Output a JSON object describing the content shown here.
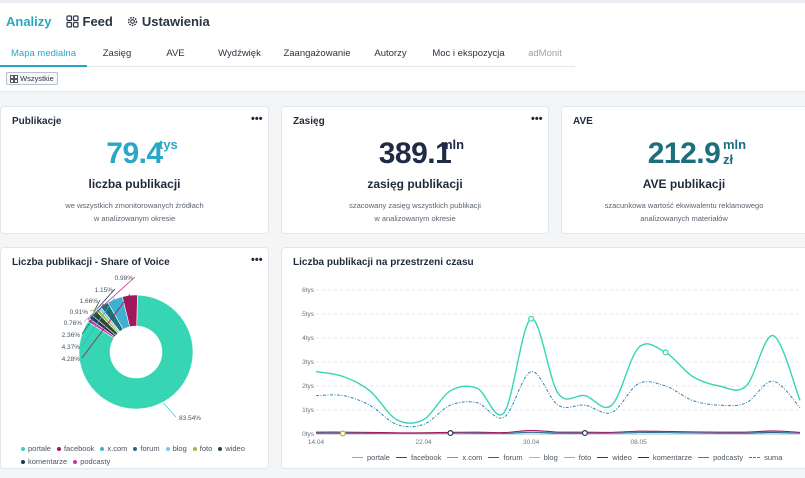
{
  "nav": {
    "items": [
      {
        "label": "Analizy",
        "active": true
      },
      {
        "label": "Feed",
        "icon": "feed-icon"
      },
      {
        "label": "Ustawienia",
        "icon": "gear-icon"
      }
    ]
  },
  "tabs": [
    {
      "label": "Mapa medialna",
      "active": true
    },
    {
      "label": "Zasięg"
    },
    {
      "label": "AVE"
    },
    {
      "label": "Wydźwięk"
    },
    {
      "label": "Zaangażowanie"
    },
    {
      "label": "Autorzy"
    },
    {
      "label": "Moc i ekspozycja"
    },
    {
      "label": "adMonit",
      "disabled": true
    }
  ],
  "filter": {
    "label": "Wszystkie"
  },
  "kpis": [
    {
      "title": "Publikacje",
      "value": "79.4",
      "unit": "tys",
      "label": "liczba publikacji",
      "desc": [
        "we wszystkich zmonitorowanych źródłach",
        "w analizowanym okresie"
      ],
      "color": "#2aa7c6"
    },
    {
      "title": "Zasięg",
      "value": "389.1",
      "unit": "mln",
      "label": "zasięg publikacji",
      "desc": [
        "szacowany zasięg wszystkich publikacji",
        "w analizowanym okresie"
      ],
      "color": "#1f2a44"
    },
    {
      "title": "AVE",
      "value": "212.9",
      "unit": "mln",
      "unit2": "zł",
      "label": "AVE publikacji",
      "desc": [
        "szacunkowa wartość ekwiwalentu reklamowego",
        "analizowanych materiałów"
      ],
      "color": "#1d6f7e"
    }
  ],
  "colors": {
    "portale": "#36d6b4",
    "facebook": "#a0185c",
    "x_com": "#3fb0d0",
    "forum": "#1f6f7a",
    "blog": "#79c8e2",
    "foto": "#a8b83a",
    "wideo": "#244a3a",
    "komentarze": "#233352",
    "podcasty": "#c33aa0",
    "suma": "#2e86b0"
  },
  "sov": {
    "title": "Liczba publikacji - Share of Voice",
    "legend": [
      "portale",
      "facebook",
      "x.com",
      "forum",
      "blog",
      "foto",
      "wideo",
      "komentarze",
      "podcasty"
    ],
    "chart_data": {
      "type": "pie",
      "categories": [
        "portale",
        "facebook",
        "x.com",
        "forum",
        "blog",
        "foto",
        "wideo",
        "komentarze",
        "podcasty"
      ],
      "values": [
        83.54,
        4.28,
        4.37,
        2.36,
        0.76,
        0.91,
        1.66,
        1.15,
        0.98
      ],
      "labels": [
        "83.54%",
        "4.28%",
        "4.37%",
        "2.36%",
        "0.76%",
        "0.91%",
        "1.66%",
        "1.15%",
        "0.98%"
      ]
    }
  },
  "timeline": {
    "title": "Liczba publikacji na przestrzeni czasu",
    "legend": [
      "portale",
      "facebook",
      "x.com",
      "forum",
      "blog",
      "foto",
      "wideo",
      "komentarze",
      "podcasty",
      "suma"
    ],
    "chart_data": {
      "type": "line",
      "x": [
        0,
        2,
        4,
        6,
        8,
        10,
        12,
        14,
        16,
        18,
        20,
        22,
        24,
        26,
        28,
        30,
        32,
        34,
        36
      ],
      "xticks": [
        {
          "x": 0,
          "label": "14.04"
        },
        {
          "x": 8,
          "label": "22.04"
        },
        {
          "x": 16,
          "label": "30.04"
        },
        {
          "x": 24,
          "label": "08.05"
        }
      ],
      "ylim": [
        0,
        6
      ],
      "yticks": [
        "0tys",
        "1tys",
        "2tys",
        "3tys",
        "4tys",
        "5tys",
        "6tys"
      ],
      "series": [
        {
          "name": "portale",
          "values": [
            2.6,
            2.4,
            1.8,
            0.6,
            0.6,
            1.8,
            1.9,
            0.9,
            4.8,
            1.7,
            1.6,
            1.2,
            3.6,
            3.4,
            2.4,
            2.0,
            2.0,
            4.1,
            1.4
          ]
        },
        {
          "name": "suma",
          "values": [
            1.6,
            1.6,
            1.2,
            0.4,
            0.4,
            1.2,
            1.3,
            0.7,
            2.6,
            1.2,
            1.2,
            0.9,
            2.1,
            2.0,
            1.4,
            1.2,
            1.3,
            2.2,
            1.1
          ]
        },
        {
          "name": "facebook",
          "values": [
            0.08,
            0.08,
            0.07,
            0.05,
            0.05,
            0.07,
            0.08,
            0.06,
            0.15,
            0.08,
            0.08,
            0.07,
            0.12,
            0.11,
            0.09,
            0.08,
            0.08,
            0.13,
            0.07
          ]
        },
        {
          "name": "x.com",
          "values": [
            0.06,
            0.06,
            0.05,
            0.04,
            0.04,
            0.05,
            0.06,
            0.05,
            0.09,
            0.06,
            0.06,
            0.05,
            0.08,
            0.08,
            0.06,
            0.06,
            0.06,
            0.09,
            0.05
          ]
        },
        {
          "name": "komentarze",
          "values": [
            0.04,
            0.04,
            0.03,
            0.03,
            0.03,
            0.04,
            0.04,
            0.03,
            0.07,
            0.04,
            0.04,
            0.04,
            0.06,
            0.06,
            0.05,
            0.04,
            0.04,
            0.06,
            0.04
          ]
        }
      ],
      "markers": [
        {
          "series": "portale",
          "x": 16
        },
        {
          "series": "portale",
          "x": 26
        },
        {
          "series": "komentarze",
          "x": 10
        },
        {
          "series": "komentarze",
          "x": 20
        },
        {
          "series": "foto",
          "x": 2
        }
      ]
    }
  }
}
